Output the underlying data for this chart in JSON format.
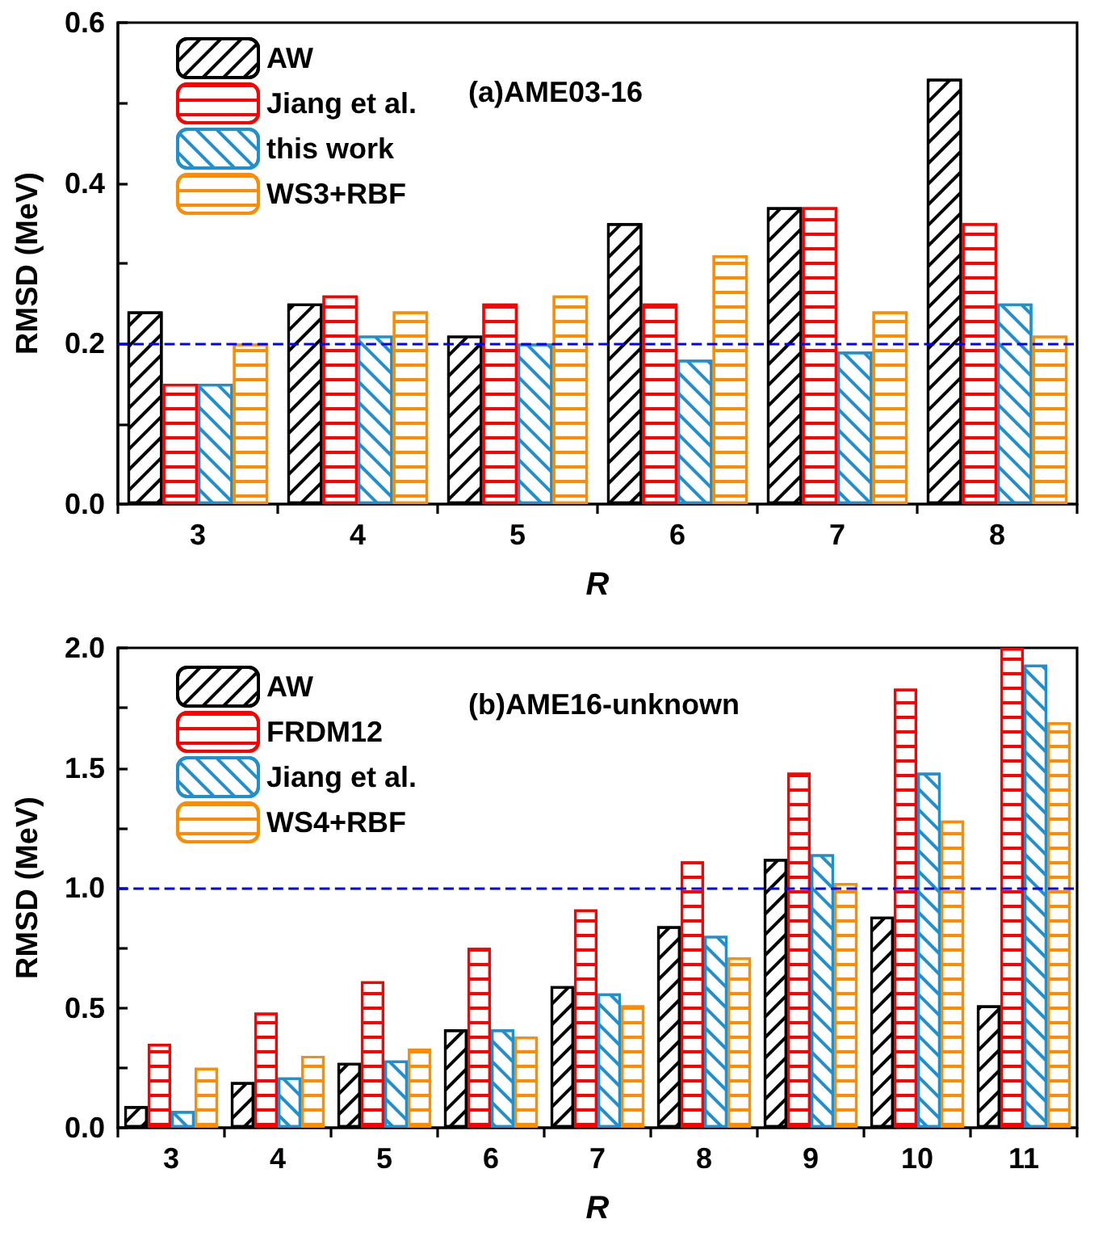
{
  "chart_data": [
    {
      "type": "bar",
      "categories": [
        "3",
        "4",
        "5",
        "6",
        "7",
        "8"
      ],
      "xlabel": "R",
      "ylabel": "RMSD (MeV)",
      "annotations": [
        "(a)AME03-16"
      ],
      "series": [
        {
          "name": "AW",
          "color": "#000000",
          "values": [
            0.24,
            0.25,
            0.21,
            0.35,
            0.37,
            0.53
          ]
        },
        {
          "name": "Jiang et al.",
          "color": "#ff0000",
          "values": [
            0.15,
            0.26,
            0.25,
            0.25,
            0.37,
            0.35
          ]
        },
        {
          "name": "this work",
          "color": "#1f8fce",
          "values": [
            0.15,
            0.21,
            0.2,
            0.18,
            0.19,
            0.25
          ]
        },
        {
          "name": "WS3+RBF",
          "color": "#ff8c00",
          "values": [
            0.2,
            0.24,
            0.26,
            0.31,
            0.24,
            0.21
          ]
        }
      ],
      "ylim": [
        0,
        0.6
      ],
      "yticks": [
        {
          "value": 0,
          "label": "0.0"
        },
        {
          "value": 0.1,
          "label": null
        },
        {
          "value": 0.2,
          "label": "0.2"
        },
        {
          "value": 0.3,
          "label": null
        },
        {
          "value": 0.4,
          "label": "0.4"
        },
        {
          "value": 0.5,
          "label": null
        },
        {
          "value": 0.6,
          "label": "0.6"
        }
      ],
      "ref_lines": [
        {
          "axis": "y",
          "value": 0.2,
          "color": "#0000ff",
          "line_style": "dashed"
        }
      ],
      "legend": "top left",
      "grid": false
    },
    {
      "type": "bar",
      "categories": [
        "3",
        "4",
        "5",
        "6",
        "7",
        "8",
        "9",
        "10",
        "11"
      ],
      "xlabel": "R",
      "ylabel": "RMSD (MeV)",
      "annotations": [
        "(b)AME16-unknown"
      ],
      "series": [
        {
          "name": "AW",
          "color": "#000000",
          "values": [
            0.09,
            0.19,
            0.27,
            0.41,
            0.59,
            0.84,
            1.12,
            0.88,
            0.51
          ]
        },
        {
          "name": "FRDM12",
          "color": "#ff0000",
          "values": [
            0.35,
            0.48,
            0.61,
            0.75,
            0.91,
            1.11,
            1.48,
            1.83,
            2.0
          ]
        },
        {
          "name": "Jiang et al.",
          "color": "#1f8fce",
          "values": [
            0.07,
            0.21,
            0.28,
            0.41,
            0.56,
            0.8,
            1.14,
            1.48,
            1.93
          ]
        },
        {
          "name": "WS4+RBF",
          "color": "#ff8c00",
          "values": [
            0.25,
            0.3,
            0.33,
            0.38,
            0.51,
            0.71,
            1.02,
            1.28,
            1.69
          ]
        }
      ],
      "ylim": [
        0,
        2
      ],
      "yticks": [
        {
          "value": 0,
          "label": "0.0"
        },
        {
          "value": 0.25,
          "label": null
        },
        {
          "value": 0.5,
          "label": "0.5"
        },
        {
          "value": 0.75,
          "label": null
        },
        {
          "value": 1,
          "label": "1.0"
        },
        {
          "value": 1.25,
          "label": null
        },
        {
          "value": 1.5,
          "label": "1.5"
        },
        {
          "value": 1.75,
          "label": null
        },
        {
          "value": 2,
          "label": "2.0"
        }
      ],
      "ref_lines": [
        {
          "axis": "y",
          "value": 1,
          "color": "#0000ff",
          "line_style": "dashed"
        }
      ],
      "legend": "top left",
      "grid": false
    }
  ]
}
